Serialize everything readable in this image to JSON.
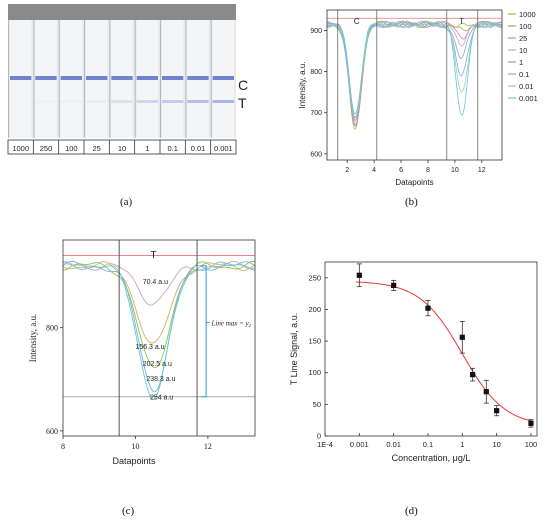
{
  "captions": [
    "(a)",
    "(b)",
    "(c)",
    "(d)"
  ],
  "strips": {
    "labels": [
      "1000",
      "250",
      "100",
      "25",
      "10",
      "1",
      "0.1",
      "0.01",
      "0.001"
    ],
    "line_labels": [
      "C",
      "T"
    ]
  },
  "chart_data": [
    {
      "type": "line",
      "panel": "b",
      "xlabel": "Datapoints",
      "ylabel": "Intensity, a.u.",
      "xticks": [
        2,
        4,
        6,
        8,
        10,
        12
      ],
      "yticks": [
        600,
        700,
        800,
        900
      ],
      "xlim": [
        0.5,
        13.5
      ],
      "ylim": [
        585,
        950
      ],
      "annotations": [
        "C",
        "T"
      ],
      "legend": [
        "1000",
        "100",
        "25",
        "10",
        "1",
        "0.1",
        "0.01",
        "0.001"
      ],
      "legend_position": "right",
      "colors": [
        "#8bc34a",
        "#b0a060",
        "#d48a8a",
        "#c9a0c9",
        "#9a9ad0",
        "#7ab0e0",
        "#9ad0b0",
        "#60c8d8"
      ],
      "baseline": 915,
      "reference_line": 930,
      "c_peak_depth": [
        260,
        250,
        245,
        240,
        235,
        230,
        225,
        215
      ],
      "t_peak_depth": [
        5,
        15,
        30,
        45,
        80,
        130,
        170,
        220
      ]
    },
    {
      "type": "line",
      "panel": "c",
      "xlabel": "Datapoints",
      "ylabel": "Intensity, a.u.",
      "xticks": [
        8,
        10,
        12
      ],
      "yticks": [
        600,
        800
      ],
      "xlim": [
        8,
        13.3
      ],
      "ylim": [
        590,
        970
      ],
      "peak_label": "T",
      "annotations": [
        "70.4  a.u",
        "156.3  a.u",
        "202.5  a.u",
        "238.3  a.u",
        "254  a.u"
      ],
      "peak_depth": [
        70.4,
        156.3,
        202.5,
        238.3,
        254
      ],
      "baseline": 920,
      "reference_line": 940,
      "line_max_label": "Line max = y₂",
      "colors": [
        "#c9a0c9",
        "#d4b060",
        "#8bc34a",
        "#7ab0e0",
        "#60c8d8"
      ]
    },
    {
      "type": "scatter",
      "panel": "d",
      "xlabel": "Concentration, μg/L",
      "ylabel": "T Line Signal, a.u.",
      "xscale": "log",
      "xticks": [
        "1E-4",
        "0.001",
        "0.01",
        "0.1",
        "1",
        "10",
        "100"
      ],
      "yticks": [
        0,
        50,
        100,
        150,
        200,
        250
      ],
      "xlim": [
        0.0001,
        150
      ],
      "ylim": [
        0,
        275
      ],
      "x": [
        0.001,
        0.01,
        0.1,
        1,
        2,
        5,
        10,
        100
      ],
      "y": [
        254,
        238,
        202,
        156,
        97,
        70,
        40,
        20
      ],
      "err": [
        18,
        8,
        12,
        25,
        10,
        18,
        8,
        6
      ],
      "fit": {
        "top": 245,
        "bottom": 15,
        "ec50": 1.0,
        "hill": 0.7,
        "color": "#e53935"
      }
    }
  ]
}
